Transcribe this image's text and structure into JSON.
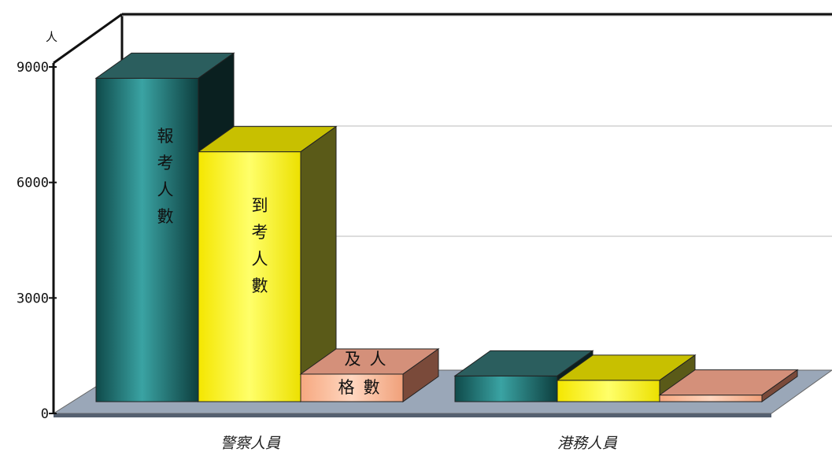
{
  "chart_data": {
    "type": "bar",
    "unit_label": "人",
    "y_ticks": [
      "0",
      "3000",
      "6000",
      "9000"
    ],
    "ylim": [
      0,
      9000
    ],
    "grid": true,
    "categories": [
      "警察人員",
      "港務人員"
    ],
    "series": [
      {
        "name": "報考人數",
        "label_lines": [
          "報",
          "考",
          "人",
          "數"
        ],
        "color": "#1f6e6e",
        "values": [
          8800,
          700
        ]
      },
      {
        "name": "到考人數",
        "label_lines": [
          "到",
          "考",
          "人",
          "數"
        ],
        "color": "#fff21a",
        "values": [
          6800,
          580
        ]
      },
      {
        "name": "及格人數",
        "label_lines": [
          "及",
          "人",
          "格",
          "數"
        ],
        "color": "#f3b08e",
        "values": [
          750,
          180
        ]
      }
    ]
  }
}
